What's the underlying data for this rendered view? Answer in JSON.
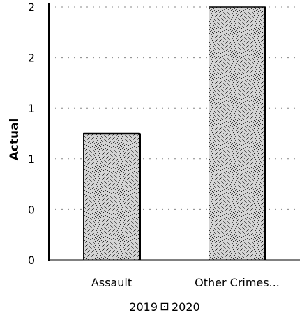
{
  "chart_data": {
    "type": "bar",
    "title": "",
    "xlabel": "",
    "ylabel": "Actual",
    "categories": [
      "Assault",
      "Other Crimes..."
    ],
    "y_tick_labels": [
      "0",
      "0",
      "1",
      "1",
      "2",
      "2"
    ],
    "y_tick_values": [
      0,
      0.4,
      0.8,
      1.2,
      1.6,
      2.0
    ],
    "ylim": [
      0,
      2.0
    ],
    "grid": true,
    "legend": {
      "placement": "bottom-center",
      "separator": "⊡"
    },
    "series": [
      {
        "name": "2019",
        "values": [
          0,
          0
        ]
      },
      {
        "name": "2020",
        "values": [
          1,
          2
        ]
      }
    ],
    "colors": {
      "bar_fill": "#c8c8c8",
      "bar_edge": "#111111",
      "axis": "#000000",
      "grid": "#888888"
    }
  }
}
